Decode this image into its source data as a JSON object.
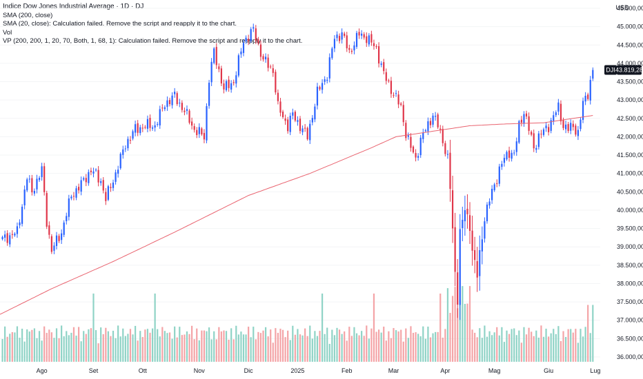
{
  "legend": {
    "title": "Indice Dow Jones Industrial Average · 1D · DJ",
    "line1": "SMA (200, close)",
    "line2": "SMA (20, close): Calculation failed. Remove the script and reapply it to the chart.",
    "line3": "Vol",
    "line4": "VP (200, 200, 1, 20, 70, Both, 1, 68, 1): Calculation failed. Remove the script and reapply it to the chart."
  },
  "currency_label": "USD",
  "symbol_tag": "DJI",
  "last_price_label": "43.819,28",
  "colors": {
    "up": "#2962ff",
    "down": "#e0364a",
    "vol_up": "#8fd3c6",
    "vol_down": "#f4a4a7",
    "sma": "#e9626e"
  },
  "chart_data": {
    "type": "candlestick",
    "symbol": "DJI",
    "last_price": 43819.28,
    "ylim": [
      35800,
      45600
    ],
    "y_ticks": [
      {
        "v": 45500,
        "label": "45.500,00"
      },
      {
        "v": 45000,
        "label": "45.000,00"
      },
      {
        "v": 44500,
        "label": "44.500,00"
      },
      {
        "v": 44000,
        "label": "44.000,00"
      },
      {
        "v": 43500,
        "label": "43.500,00"
      },
      {
        "v": 43000,
        "label": "43.000,00"
      },
      {
        "v": 42500,
        "label": "42.500,00"
      },
      {
        "v": 42000,
        "label": "42.000,00"
      },
      {
        "v": 41500,
        "label": "41.500,00"
      },
      {
        "v": 41000,
        "label": "41.000,00"
      },
      {
        "v": 40500,
        "label": "40.500,00"
      },
      {
        "v": 40000,
        "label": "40.000,00"
      },
      {
        "v": 39500,
        "label": "39.500,00"
      },
      {
        "v": 39000,
        "label": "39.000,00"
      },
      {
        "v": 38500,
        "label": "38.500,00"
      },
      {
        "v": 38000,
        "label": "38.000,00"
      },
      {
        "v": 37500,
        "label": "37.500,00"
      },
      {
        "v": 37000,
        "label": "37.000,00"
      },
      {
        "v": 36500,
        "label": "36.500,00"
      },
      {
        "v": 36000,
        "label": "36.000,00"
      }
    ],
    "x_labels": [
      {
        "i": 16,
        "label": "Ago"
      },
      {
        "i": 37,
        "label": "Set"
      },
      {
        "i": 57,
        "label": "Ott"
      },
      {
        "i": 80,
        "label": "Nov"
      },
      {
        "i": 100,
        "label": "Dic"
      },
      {
        "i": 120,
        "label": "2025"
      },
      {
        "i": 140,
        "label": "Feb"
      },
      {
        "i": 159,
        "label": "Mar"
      },
      {
        "i": 180,
        "label": "Apr"
      },
      {
        "i": 200,
        "label": "Mag"
      },
      {
        "i": 222,
        "label": "Giu"
      },
      {
        "i": 241,
        "label": "Lug"
      }
    ],
    "x_range": [
      -1,
      243
    ],
    "price_anchors": [
      [
        0,
        39200
      ],
      [
        6,
        39400
      ],
      [
        10,
        40900
      ],
      [
        12,
        40500
      ],
      [
        16,
        41100
      ],
      [
        18,
        39700
      ],
      [
        20,
        38900
      ],
      [
        24,
        39400
      ],
      [
        28,
        40400
      ],
      [
        32,
        40700
      ],
      [
        36,
        41100
      ],
      [
        40,
        40800
      ],
      [
        42,
        40300
      ],
      [
        46,
        41000
      ],
      [
        50,
        41800
      ],
      [
        54,
        42200
      ],
      [
        58,
        42300
      ],
      [
        62,
        42300
      ],
      [
        66,
        42900
      ],
      [
        70,
        43100
      ],
      [
        74,
        42700
      ],
      [
        78,
        42200
      ],
      [
        82,
        42000
      ],
      [
        84,
        43600
      ],
      [
        86,
        44300
      ],
      [
        90,
        43300
      ],
      [
        94,
        43500
      ],
      [
        98,
        44600
      ],
      [
        102,
        44900
      ],
      [
        106,
        44100
      ],
      [
        110,
        43800
      ],
      [
        112,
        42800
      ],
      [
        116,
        42300
      ],
      [
        118,
        42600
      ],
      [
        120,
        42400
      ],
      [
        124,
        42000
      ],
      [
        128,
        43200
      ],
      [
        132,
        43700
      ],
      [
        135,
        44700
      ],
      [
        138,
        44800
      ],
      [
        141,
        44300
      ],
      [
        145,
        44800
      ],
      [
        148,
        44700
      ],
      [
        152,
        44400
      ],
      [
        155,
        43700
      ],
      [
        158,
        43300
      ],
      [
        162,
        42800
      ],
      [
        164,
        42100
      ],
      [
        166,
        41700
      ],
      [
        168,
        41400
      ],
      [
        170,
        41900
      ],
      [
        172,
        42200
      ],
      [
        175,
        42600
      ],
      [
        177,
        42300
      ],
      [
        179,
        41900
      ],
      [
        181,
        41400
      ],
      [
        182,
        40600
      ],
      [
        184,
        38300
      ],
      [
        185,
        37600
      ],
      [
        186,
        39400
      ],
      [
        188,
        40000
      ],
      [
        190,
        39600
      ],
      [
        191,
        38900
      ],
      [
        193,
        38200
      ],
      [
        194,
        38800
      ],
      [
        196,
        39800
      ],
      [
        199,
        40500
      ],
      [
        202,
        41100
      ],
      [
        204,
        41400
      ],
      [
        206,
        41600
      ],
      [
        208,
        41500
      ],
      [
        210,
        42300
      ],
      [
        212,
        42700
      ],
      [
        214,
        42200
      ],
      [
        216,
        41700
      ],
      [
        218,
        42000
      ],
      [
        222,
        42300
      ],
      [
        226,
        42800
      ],
      [
        228,
        42300
      ],
      [
        230,
        42200
      ],
      [
        232,
        42300
      ],
      [
        234,
        42100
      ],
      [
        236,
        42900
      ],
      [
        238,
        43200
      ],
      [
        240,
        43819
      ]
    ],
    "sma200_anchors": [
      [
        -1,
        37160
      ],
      [
        20,
        37860
      ],
      [
        45,
        38600
      ],
      [
        70,
        39400
      ],
      [
        100,
        40400
      ],
      [
        125,
        41000
      ],
      [
        150,
        41700
      ],
      [
        160,
        42000
      ],
      [
        175,
        42150
      ],
      [
        190,
        42300
      ],
      [
        205,
        42350
      ],
      [
        220,
        42380
      ],
      [
        240,
        42580
      ]
    ],
    "volume_axis_max": 2000000
  }
}
